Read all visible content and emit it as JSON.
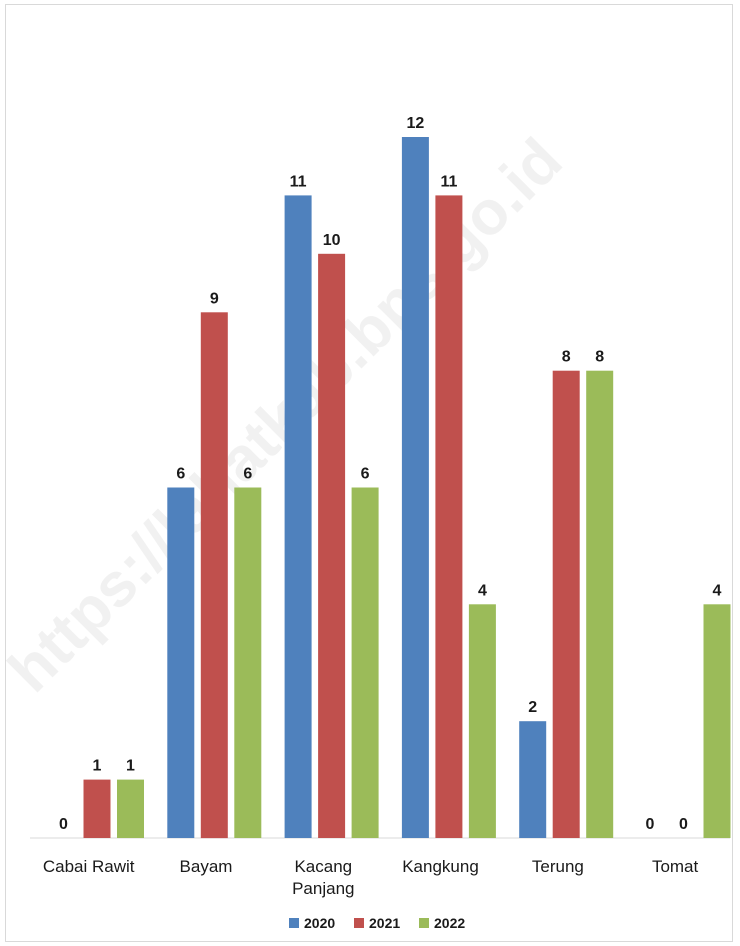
{
  "watermark": "https://lahatkab.bps.go.id",
  "chart_data": {
    "type": "bar",
    "categories": [
      "Cabai Rawit",
      "Bayam",
      "Kacang Panjang",
      "Kangkung",
      "Terung",
      "Tomat"
    ],
    "series": [
      {
        "name": "2020",
        "color": "#4f81bd",
        "values": [
          0,
          6,
          11,
          12,
          2,
          0
        ]
      },
      {
        "name": "2021",
        "color": "#c0504d",
        "values": [
          1,
          9,
          10,
          11,
          8,
          0
        ]
      },
      {
        "name": "2022",
        "color": "#9bbb59",
        "values": [
          1,
          6,
          6,
          4,
          8,
          4
        ]
      }
    ],
    "ylim": [
      0,
      12
    ],
    "grid": false,
    "data_labels": true,
    "legend_position": "bottom",
    "title": "",
    "xlabel": "",
    "ylabel": ""
  }
}
